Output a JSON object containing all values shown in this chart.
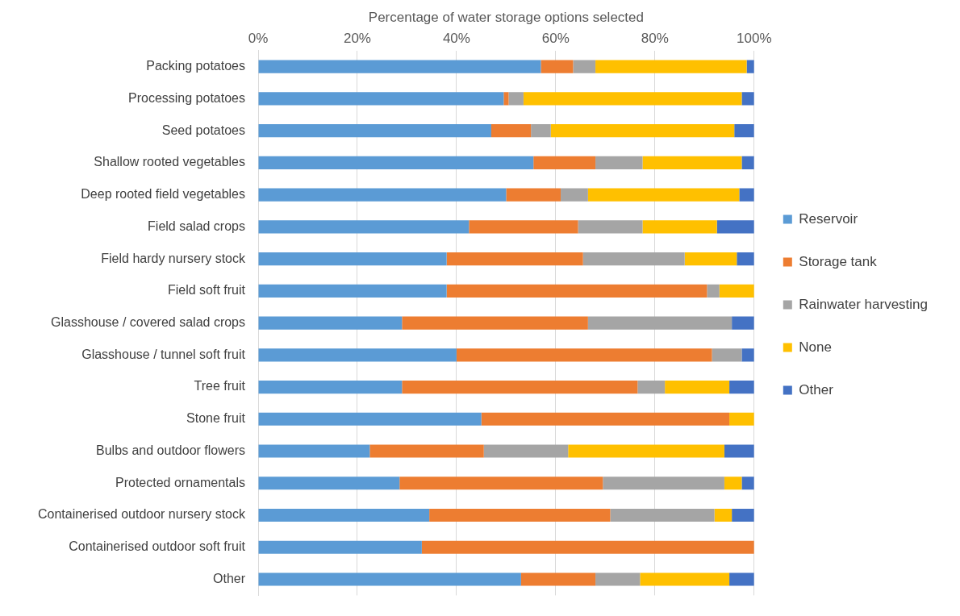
{
  "chart_data": {
    "type": "bar",
    "orientation": "horizontal",
    "stacked": true,
    "xlabel": "Percentage of water storage options selected",
    "categories": [
      "Packing potatoes",
      "Processing potatoes",
      "Seed potatoes",
      "Shallow rooted vegetables",
      "Deep rooted field vegetables",
      "Field salad crops",
      "Field hardy nursery stock",
      "Field soft fruit",
      "Glasshouse / covered salad crops",
      "Glasshouse / tunnel soft fruit",
      "Tree fruit",
      "Stone fruit",
      "Bulbs and outdoor flowers",
      "Protected ornamentals",
      "Containerised outdoor nursery stock",
      "Containerised outdoor soft fruit",
      "Other"
    ],
    "series": [
      {
        "name": "Reservoir",
        "color": "#5b9bd5",
        "values": [
          57,
          49.5,
          47,
          55.5,
          50,
          42.5,
          38,
          38,
          29,
          40,
          29,
          45,
          22.5,
          28.5,
          34.5,
          33,
          53
        ]
      },
      {
        "name": "Storage tank",
        "color": "#ed7d31",
        "values": [
          6.5,
          1,
          8,
          12.5,
          11,
          22,
          27.5,
          52.5,
          37.5,
          51.5,
          47.5,
          50,
          23,
          41,
          36.5,
          67,
          15
        ]
      },
      {
        "name": "Rainwater harvesting",
        "color": "#a5a5a5",
        "values": [
          4.5,
          3,
          4,
          9.5,
          5.5,
          13,
          20.5,
          2.5,
          29,
          6,
          5.5,
          0,
          17,
          24.5,
          21,
          0,
          9
        ]
      },
      {
        "name": "None",
        "color": "#ffc000",
        "values": [
          30.5,
          44,
          37,
          20,
          30.5,
          15,
          10.5,
          7,
          0,
          0,
          13,
          5,
          31.5,
          3.5,
          3.5,
          0,
          18
        ]
      },
      {
        "name": "Other",
        "color": "#4472c4",
        "values": [
          1.5,
          2.5,
          4,
          2.5,
          3,
          7.5,
          3.5,
          0,
          4.5,
          2.5,
          5,
          0,
          6,
          2.5,
          4.5,
          0,
          5
        ]
      }
    ],
    "xlim": [
      0,
      100
    ],
    "xticks": [
      {
        "value": 0,
        "label": "0%"
      },
      {
        "value": 20,
        "label": "20%"
      },
      {
        "value": 40,
        "label": "40%"
      },
      {
        "value": 60,
        "label": "60%"
      },
      {
        "value": 80,
        "label": "80%"
      },
      {
        "value": 100,
        "label": "100%"
      }
    ],
    "grid": "x",
    "legend": "right"
  }
}
